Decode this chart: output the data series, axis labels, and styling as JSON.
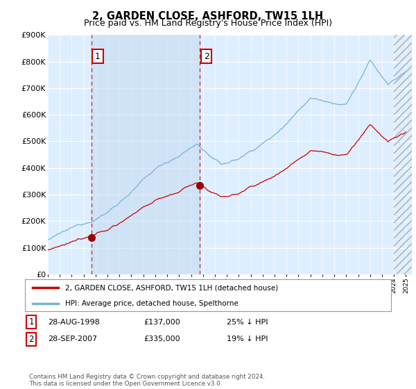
{
  "title": "2, GARDEN CLOSE, ASHFORD, TW15 1LH",
  "subtitle": "Price paid vs. HM Land Registry's House Price Index (HPI)",
  "ylim": [
    0,
    900000
  ],
  "yticks": [
    0,
    100000,
    200000,
    300000,
    400000,
    500000,
    600000,
    700000,
    800000,
    900000
  ],
  "ytick_labels": [
    "£0",
    "£100K",
    "£200K",
    "£300K",
    "£400K",
    "£500K",
    "£600K",
    "£700K",
    "£800K",
    "£900K"
  ],
  "fig_bg_color": "#ffffff",
  "plot_bg_color": "#ddeeff",
  "grid_color": "#ffffff",
  "shade_color": "#c8ddf0",
  "sale1_date": 1998.66,
  "sale1_price": 137000,
  "sale2_date": 2007.75,
  "sale2_price": 335000,
  "legend_line1": "2, GARDEN CLOSE, ASHFORD, TW15 1LH (detached house)",
  "legend_line2": "HPI: Average price, detached house, Spelthorne",
  "line_color_red": "#cc0000",
  "line_color_blue": "#7ab0d4",
  "marker_color": "#990000",
  "title_fontsize": 10.5,
  "subtitle_fontsize": 9,
  "tick_fontsize": 8,
  "footer": "Contains HM Land Registry data © Crown copyright and database right 2024.\nThis data is licensed under the Open Government Licence v3.0."
}
